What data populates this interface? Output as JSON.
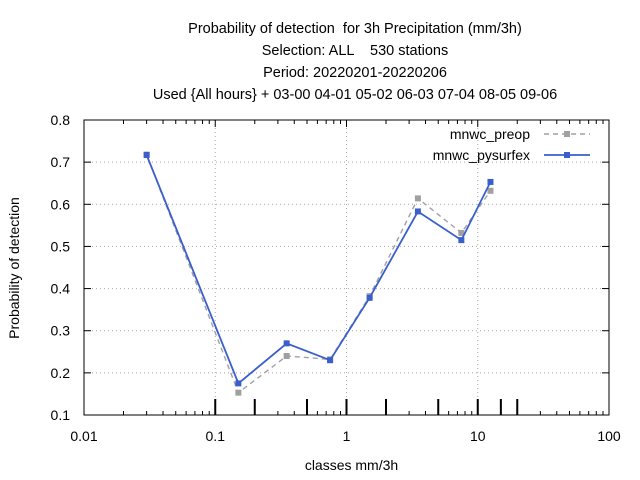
{
  "chart_data": {
    "type": "line",
    "title_lines": [
      "Probability of detection  for 3h Precipitation (mm/3h)",
      "Selection: ALL    530 stations",
      "Period: 20220201-20220206",
      "Used {All hours} + 03-00 04-01 05-02 06-03 07-04 08-05 09-06"
    ],
    "xlabel": "classes mm/3h",
    "ylabel": "Probability of detection",
    "xscale": "log",
    "xlim": [
      0.01,
      100
    ],
    "ylim": [
      0.1,
      0.8
    ],
    "x_ticks": [
      0.01,
      0.1,
      1,
      10,
      100
    ],
    "x_tick_labels": [
      "0.01",
      "0.1",
      "1",
      "10",
      "100"
    ],
    "y_ticks": [
      0.1,
      0.2,
      0.3,
      0.4,
      0.5,
      0.6,
      0.7,
      0.8
    ],
    "y_tick_labels": [
      "0.1",
      "0.2",
      "0.3",
      "0.4",
      "0.5",
      "0.6",
      "0.7",
      "0.8"
    ],
    "class_thresholds": [
      0.1,
      0.2,
      0.5,
      1,
      2,
      5,
      10,
      15,
      20
    ],
    "grid": true,
    "legend_position": "top-right",
    "series": [
      {
        "name": "mnwc_preop",
        "color": "#a0a0a0",
        "dash": true,
        "x": [
          0.03,
          0.15,
          0.35,
          0.75,
          1.5,
          3.5,
          7.5,
          12.5
        ],
        "y": [
          0.718,
          0.153,
          0.24,
          0.232,
          0.382,
          0.614,
          0.532,
          0.632
        ]
      },
      {
        "name": "mnwc_pysurfex",
        "color": "#3a5fcd",
        "dash": false,
        "x": [
          0.03,
          0.15,
          0.35,
          0.75,
          1.5,
          3.5,
          7.5,
          12.5
        ],
        "y": [
          0.717,
          0.175,
          0.27,
          0.23,
          0.378,
          0.583,
          0.515,
          0.653
        ]
      }
    ]
  }
}
